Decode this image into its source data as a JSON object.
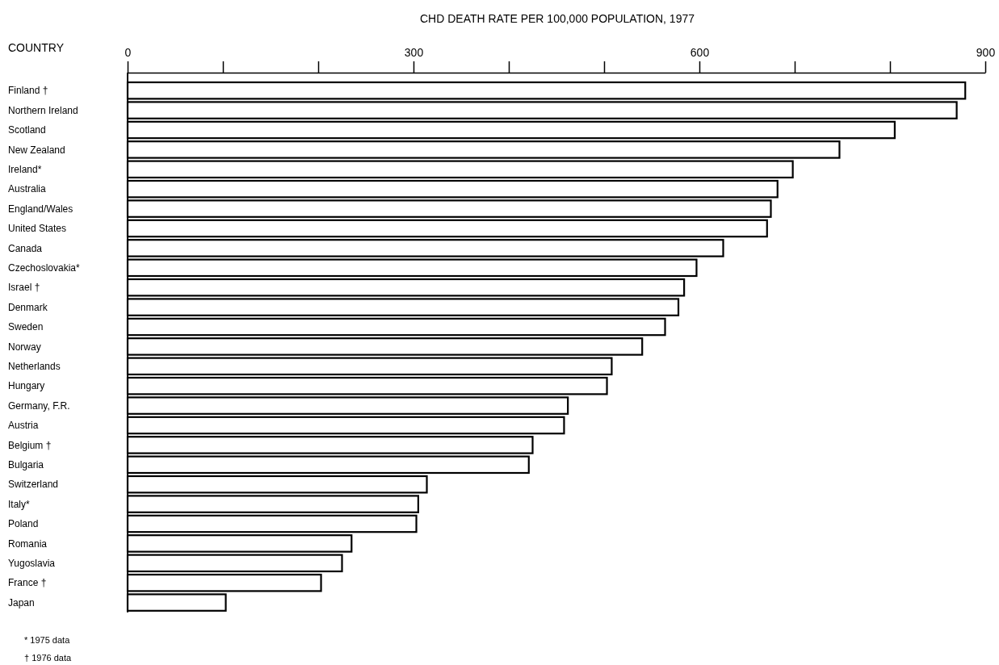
{
  "chart_data": {
    "type": "bar",
    "orientation": "horizontal",
    "title": "CHD DEATH RATE PER 100,000 POPULATION, 1977",
    "ylabel": "COUNTRY",
    "categories": [
      "Finland †",
      "Northern Ireland",
      "Scotland",
      "New Zealand",
      "Ireland*",
      "Australia",
      "England/Wales",
      "United States",
      "Canada",
      "Czechoslovakia*",
      "Israel †",
      "Denmark",
      "Sweden",
      "Norway",
      "Netherlands",
      "Hungary",
      "Germany, F.R.",
      "Austria",
      "Belgium †",
      "Bulgaria",
      "Switzerland",
      "Italy*",
      "Poland",
      "Romania",
      "Yugoslavia",
      "France †",
      "Japan"
    ],
    "values": [
      879,
      870,
      805,
      747,
      698,
      682,
      675,
      671,
      625,
      597,
      584,
      578,
      564,
      540,
      508,
      503,
      462,
      458,
      425,
      421,
      314,
      305,
      303,
      235,
      225,
      203,
      103
    ],
    "color": "#ffffff",
    "xlim": [
      0,
      900
    ],
    "xticks": [
      0,
      {
        "value": 100,
        "label": null
      },
      {
        "value": 200,
        "label": null
      },
      300,
      {
        "value": 400,
        "label": null
      },
      {
        "value": 500,
        "label": null
      },
      600,
      {
        "value": 700,
        "label": null
      },
      {
        "value": 800,
        "label": null
      },
      900
    ],
    "grid": false,
    "annotations": [
      "* 1975 data",
      "† 1976 data"
    ]
  }
}
